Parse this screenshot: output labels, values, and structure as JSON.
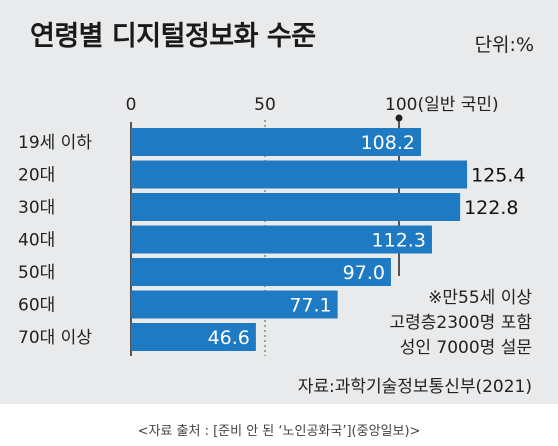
{
  "chart_data": {
    "type": "bar",
    "title": "연령별 디지털정보화 수준",
    "unit_label": "단위:%",
    "categories": [
      "19세 이하",
      "20대",
      "30대",
      "40대",
      "50대",
      "60대",
      "70대 이상"
    ],
    "values": [
      108.2,
      125.4,
      122.8,
      112.3,
      97.0,
      77.1,
      46.6
    ],
    "value_labels": [
      "108.2",
      "125.4",
      "122.8",
      "112.3",
      "97.0",
      "77.1",
      "46.6"
    ],
    "axis_ticks": [
      {
        "value": 0,
        "label": "0"
      },
      {
        "value": 50,
        "label": "50"
      },
      {
        "value": 100,
        "label": "100(일반 국민)"
      }
    ],
    "xlim": [
      0,
      130
    ],
    "orientation": "horizontal",
    "bar_color": "#1f7ac4",
    "reference_line": 100,
    "note": [
      "※만55세 이상",
      "고령층2300명 포함",
      "성인 7000명 설문"
    ],
    "source": "자료:과학기술정보통신부(2021)"
  },
  "caption": "<자료 출처 : [준비 안 된 ‘노인공화국’](중앙일보)>"
}
